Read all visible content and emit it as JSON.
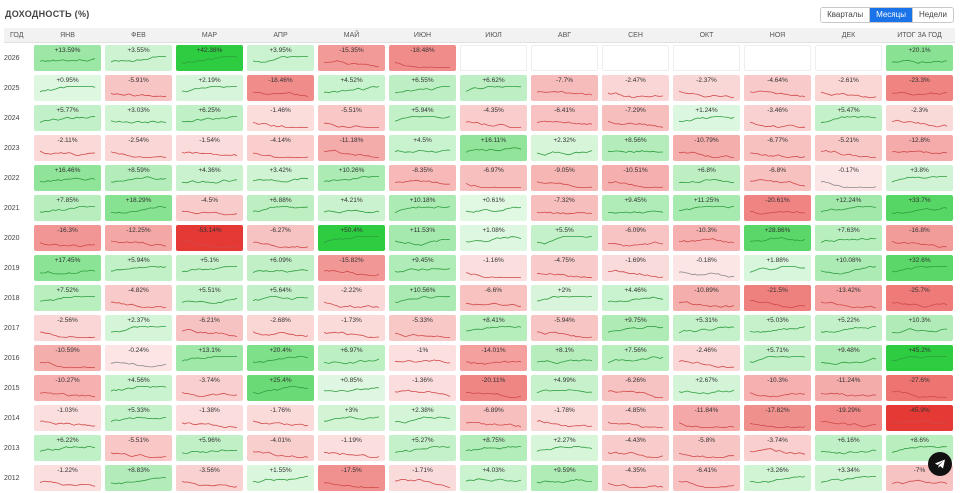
{
  "header": {
    "title": "ДОХОДНОСТЬ (%)",
    "toggle": [
      {
        "label": "Кварталы",
        "active": false
      },
      {
        "label": "Месяцы",
        "active": true
      },
      {
        "label": "Недели",
        "active": false
      }
    ]
  },
  "columns": [
    "ГОД",
    "ЯНВ",
    "ФЕВ",
    "МАР",
    "АПР",
    "МАЙ",
    "ИЮН",
    "ИЮЛ",
    "АВГ",
    "СЕН",
    "ОКТ",
    "НОЯ",
    "ДЕК",
    "ИТОГ ЗА ГОД"
  ],
  "rows": [
    {
      "year": "2026",
      "values": [
        "+13.59%",
        "+3.55%",
        "+42.38%",
        "+3.95%",
        "-15.35%",
        "-18.48%",
        "",
        "",
        "",
        "",
        "",
        "",
        "+20.1%"
      ]
    },
    {
      "year": "2025",
      "values": [
        "+0.95%",
        "-5.91%",
        "+2.19%",
        "-18.46%",
        "+4.52%",
        "+6.55%",
        "+6.62%",
        "-7.7%",
        "-2.47%",
        "-2.37%",
        "-4.64%",
        "-2.61%",
        "-23.3%"
      ]
    },
    {
      "year": "2024",
      "values": [
        "+5.77%",
        "+3.03%",
        "+6.25%",
        "-1.46%",
        "-5.51%",
        "+5.94%",
        "-4.35%",
        "-6.41%",
        "-7.29%",
        "+1.24%",
        "-3.46%",
        "+5.47%",
        "-2.3%"
      ]
    },
    {
      "year": "2023",
      "values": [
        "-2.11%",
        "-2.54%",
        "-1.54%",
        "-4.14%",
        "-11.18%",
        "+4.5%",
        "+16.11%",
        "+2.32%",
        "+8.56%",
        "-10.79%",
        "-6.77%",
        "-5.21%",
        "-12.8%"
      ]
    },
    {
      "year": "2022",
      "values": [
        "+16.46%",
        "+8.59%",
        "+4.36%",
        "+3.42%",
        "+10.26%",
        "-8.35%",
        "-6.97%",
        "-9.05%",
        "-10.51%",
        "+6.8%",
        "-6.8%",
        "-0.17%",
        "+3.8%"
      ]
    },
    {
      "year": "2021",
      "values": [
        "+7.85%",
        "+18.29%",
        "-4.5%",
        "+6.88%",
        "+4.21%",
        "+10.18%",
        "+0.61%",
        "-7.32%",
        "+9.45%",
        "+11.25%",
        "-20.61%",
        "+12.24%",
        "+33.7%"
      ]
    },
    {
      "year": "2020",
      "values": [
        "-16.3%",
        "-12.25%",
        "-53.14%",
        "-6.27%",
        "+50.4%",
        "+11.53%",
        "+1.08%",
        "+5.5%",
        "-6.09%",
        "-10.3%",
        "+28.86%",
        "+7.63%",
        "-16.8%"
      ]
    },
    {
      "year": "2019",
      "values": [
        "+17.45%",
        "+5.94%",
        "+5.1%",
        "+6.09%",
        "-15.82%",
        "+9.45%",
        "-1.16%",
        "-4.75%",
        "-1.69%",
        "-0.18%",
        "+1.88%",
        "+10.08%",
        "+32.6%"
      ]
    },
    {
      "year": "2018",
      "values": [
        "+7.52%",
        "-4.82%",
        "+5.51%",
        "+5.64%",
        "-2.22%",
        "+10.56%",
        "-6.6%",
        "+2%",
        "+4.46%",
        "-10.89%",
        "-21.5%",
        "-13.42%",
        "-25.7%"
      ]
    },
    {
      "year": "2017",
      "values": [
        "-2.56%",
        "+2.37%",
        "-6.21%",
        "-2.68%",
        "-1.73%",
        "-5.33%",
        "+8.41%",
        "-5.94%",
        "+9.75%",
        "+5.31%",
        "+5.03%",
        "+5.22%",
        "+10.3%"
      ]
    },
    {
      "year": "2016",
      "values": [
        "-10.59%",
        "-0.24%",
        "+13.1%",
        "+20.4%",
        "+6.97%",
        "-1%",
        "-14.01%",
        "+8.1%",
        "+7.56%",
        "-2.46%",
        "+5.71%",
        "+9.48%",
        "+45.2%"
      ]
    },
    {
      "year": "2015",
      "values": [
        "-10.27%",
        "+4.56%",
        "-3.74%",
        "+25.4%",
        "+0.85%",
        "-1.36%",
        "-20.11%",
        "+4.99%",
        "-6.26%",
        "+2.67%",
        "-10.3%",
        "-11.24%",
        "-27.6%"
      ]
    },
    {
      "year": "2014",
      "values": [
        "-1.03%",
        "+5.33%",
        "-1.38%",
        "-1.76%",
        "+3%",
        "+2.38%",
        "-6.89%",
        "-1.78%",
        "-4.85%",
        "-11.84%",
        "-17.82%",
        "-19.29%",
        "-45.9%"
      ]
    },
    {
      "year": "2013",
      "values": [
        "+6.22%",
        "-5.51%",
        "+5.96%",
        "-4.01%",
        "-1.19%",
        "+5.27%",
        "+8.75%",
        "+2.27%",
        "-4.43%",
        "-5.8%",
        "-3.74%",
        "+6.16%",
        "+8.6%"
      ]
    },
    {
      "year": "2012",
      "values": [
        "-1.22%",
        "+8.83%",
        "-3.56%",
        "+1.55%",
        "-17.5%",
        "-1.71%",
        "+4.03%",
        "+9.59%",
        "-4.35%",
        "-6.41%",
        "+3.26%",
        "+3.34%",
        "-7%"
      ]
    }
  ],
  "colors": {
    "positive_strong": "#2ecc40",
    "negative_strong": "#e53935",
    "positive_line": "#2e9e3e",
    "negative_line": "#d04a4a",
    "neutral_line": "#888888",
    "accent": "#1a73e8"
  },
  "fab_icon": "telegram-icon"
}
